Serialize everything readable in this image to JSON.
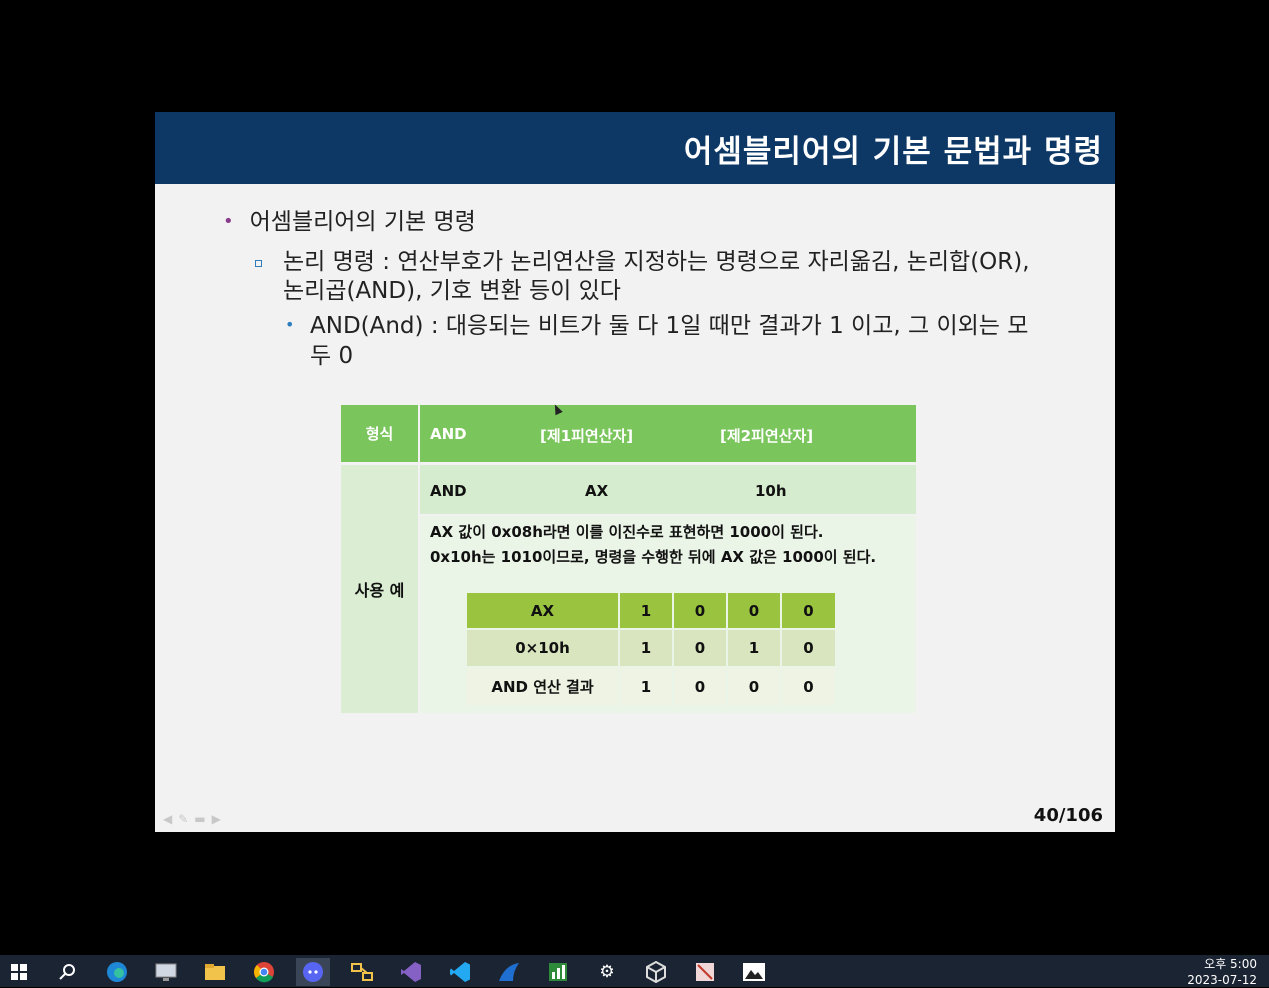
{
  "slide": {
    "title": "어셈블리어의 기본 문법과 명령",
    "bullet1": "어셈블리어의 기본 명령",
    "bullet2": "논리 명령 : 연산부호가 논리연산을 지정하는 명령으로 자리옮김, 논리합(OR), 논리곱(AND), 기호 변환 등이 있다",
    "bullet3": "AND(And) : 대응되는 비트가 둘 다 1일 때만 결과가 1 이고, 그 이외는 모두 0",
    "page": "40/106"
  },
  "table": {
    "header": {
      "label": "형식",
      "op": "AND",
      "operand1": "[제1피연산자]",
      "operand2": "[제2피연산자]"
    },
    "usage_label": "사용 예",
    "example": {
      "op": "AND",
      "operand1": "AX",
      "operand2": "10h"
    },
    "desc_line1": "AX 값이 0x08h라면 이를 이진수로 표현하면 1000이 된다.",
    "desc_line2": "0x10h는 1010이므로, 명령을 수행한 뒤에 AX 값은 1000이 된다.",
    "bits": [
      {
        "label": "AX",
        "values": [
          "1",
          "0",
          "0",
          "0"
        ]
      },
      {
        "label": "0×10h",
        "values": [
          "1",
          "0",
          "1",
          "0"
        ]
      },
      {
        "label": "AND 연산 결과",
        "values": [
          "1",
          "0",
          "0",
          "0"
        ]
      }
    ]
  },
  "taskbar": {
    "icons": [
      "windows-icon",
      "search-icon",
      "edge-icon",
      "monitor-icon",
      "folder-icon",
      "chrome-icon",
      "discord-icon",
      "puzzle-icon",
      "visual-studio-icon",
      "vscode-icon",
      "shark-icon",
      "chart-icon",
      "gear-icon",
      "cube-icon",
      "image-tool-icon",
      "photo-icon"
    ],
    "time": "오후 5:00",
    "date": "2023-07-12"
  }
}
